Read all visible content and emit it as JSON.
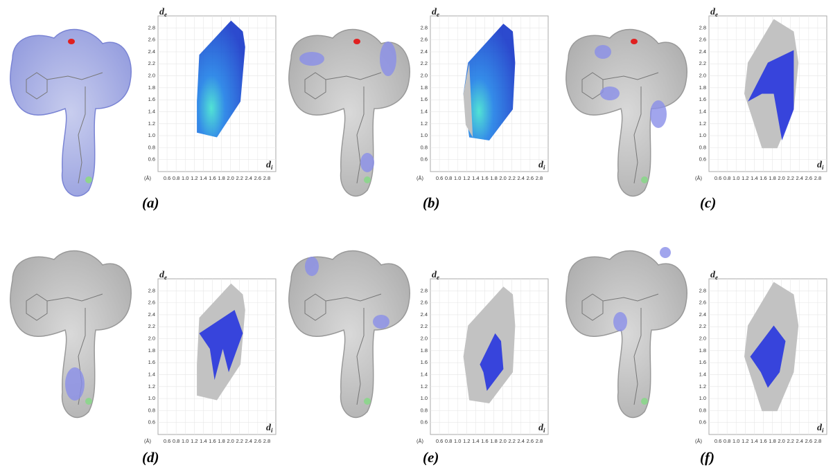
{
  "figure": {
    "fingerprint": {
      "xlabel": {
        "main": "d",
        "sub": "i"
      },
      "ylabel": {
        "main": "d",
        "sub": "e"
      },
      "unit": "(Å)",
      "xlim": [
        0.4,
        3.0
      ],
      "ylim": [
        0.4,
        3.0
      ],
      "xticks": [
        0.6,
        0.8,
        {
          "value": 1,
          "label": "1.0"
        },
        1.2,
        1.4,
        1.6,
        1.8,
        {
          "value": 2,
          "label": "2.0"
        },
        2.2,
        2.4,
        2.6,
        2.8
      ],
      "yticks": [
        0.6,
        0.8,
        {
          "value": 1,
          "label": "1.0"
        },
        1.2,
        1.4,
        1.6,
        1.8,
        {
          "value": 2,
          "label": "2.0"
        },
        2.2,
        2.4,
        2.6,
        2.8
      ]
    },
    "panels": [
      {
        "label": "(a)"
      },
      {
        "label": "(b)"
      },
      {
        "label": "(c)"
      },
      {
        "label": "(d)"
      },
      {
        "label": "(e)"
      },
      {
        "label": "(f)"
      }
    ]
  }
}
